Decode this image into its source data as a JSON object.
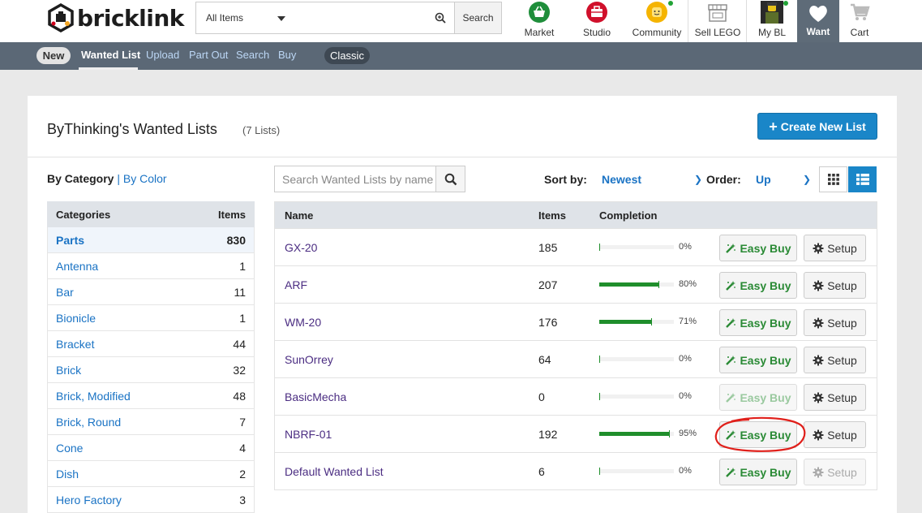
{
  "header": {
    "logo_text": "bricklink",
    "search": {
      "category_selected": "All Items",
      "input_value": "",
      "button_label": "Search"
    },
    "nav": [
      {
        "label": "Market",
        "icon": "basket-icon"
      },
      {
        "label": "Studio",
        "icon": "toolbox-icon"
      },
      {
        "label": "Community",
        "icon": "minifig-head-icon"
      },
      {
        "label": "Sell LEGO",
        "icon": "storefront-icon"
      },
      {
        "label": "My BL",
        "icon": "avatar"
      },
      {
        "label": "Want",
        "icon": "heart-icon"
      },
      {
        "label": "Cart",
        "icon": "cart-icon"
      }
    ]
  },
  "subnav": {
    "new_badge": "New",
    "links": [
      "Wanted List",
      "Upload",
      "Part Out",
      "Search",
      "Buy"
    ],
    "active": "Wanted List",
    "classic_badge": "Classic"
  },
  "page": {
    "title": "ByThinking's Wanted Lists",
    "count": "(7 Lists)",
    "create_button": "Create New List",
    "by_category": "By Category",
    "separator": "|",
    "by_color": "By Color"
  },
  "categories": {
    "header_name": "Categories",
    "header_items": "Items",
    "rows": [
      {
        "name": "Parts",
        "count": "830"
      },
      {
        "name": "Antenna",
        "count": "1"
      },
      {
        "name": "Bar",
        "count": "11"
      },
      {
        "name": "Bionicle",
        "count": "1"
      },
      {
        "name": "Bracket",
        "count": "44"
      },
      {
        "name": "Brick",
        "count": "32"
      },
      {
        "name": "Brick, Modified",
        "count": "48"
      },
      {
        "name": "Brick, Round",
        "count": "7"
      },
      {
        "name": "Cone",
        "count": "4"
      },
      {
        "name": "Dish",
        "count": "2"
      },
      {
        "name": "Hero Factory",
        "count": "3"
      }
    ]
  },
  "list_controls": {
    "search_placeholder": "Search Wanted Lists by name",
    "sort_label": "Sort by:",
    "sort_value": "Newest",
    "order_label": "Order:",
    "order_value": "Up"
  },
  "wanted_lists": {
    "header": {
      "name": "Name",
      "items": "Items",
      "completion": "Completion"
    },
    "easy_buy_label": "Easy Buy",
    "setup_label": "Setup",
    "rows": [
      {
        "name": "GX-20",
        "items": "185",
        "completion": 0,
        "pct": "0%",
        "easy_buy_enabled": true,
        "setup_enabled": true
      },
      {
        "name": "ARF",
        "items": "207",
        "completion": 80,
        "pct": "80%",
        "easy_buy_enabled": true,
        "setup_enabled": true
      },
      {
        "name": "WM-20",
        "items": "176",
        "completion": 71,
        "pct": "71%",
        "easy_buy_enabled": true,
        "setup_enabled": true
      },
      {
        "name": "SunOrrey",
        "items": "64",
        "completion": 0,
        "pct": "0%",
        "easy_buy_enabled": true,
        "setup_enabled": true
      },
      {
        "name": "BasicMecha",
        "items": "0",
        "completion": 0,
        "pct": "0%",
        "easy_buy_enabled": false,
        "setup_enabled": true
      },
      {
        "name": "NBRF-01",
        "items": "192",
        "completion": 95,
        "pct": "95%",
        "easy_buy_enabled": true,
        "setup_enabled": true,
        "annotated": true
      },
      {
        "name": "Default Wanted List",
        "items": "6",
        "completion": 0,
        "pct": "0%",
        "easy_buy_enabled": true,
        "setup_enabled": false
      }
    ]
  },
  "colors": {
    "accent_blue": "#1a86c8",
    "subnav_bg": "#5b6876",
    "progress_green": "#1f8e2b",
    "annotation_red": "#e0201b"
  }
}
